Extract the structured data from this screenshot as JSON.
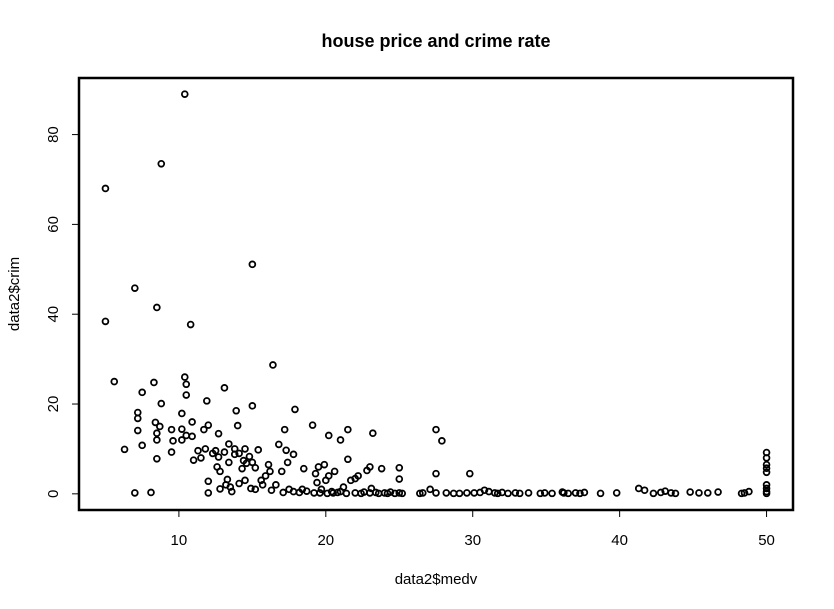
{
  "chart_data": {
    "type": "scatter",
    "title": "house price and crime rate",
    "xlabel": "data2$medv",
    "ylabel": "data2$crim",
    "xlim": [
      3.2,
      51.8
    ],
    "ylim": [
      -3.6,
      92.6
    ],
    "xticks": [
      10,
      20,
      30,
      40,
      50
    ],
    "yticks": [
      0,
      20,
      40,
      60,
      80
    ],
    "grid": false,
    "marker": "open-circle",
    "series": [
      {
        "points": [
          [
            5.0,
            68.0
          ],
          [
            5.0,
            38.4
          ],
          [
            5.6,
            25.0
          ],
          [
            6.3,
            9.9
          ],
          [
            7.0,
            45.8
          ],
          [
            7.0,
            0.2
          ],
          [
            7.2,
            18.1
          ],
          [
            7.2,
            16.8
          ],
          [
            7.2,
            14.1
          ],
          [
            7.5,
            22.6
          ],
          [
            7.5,
            10.8
          ],
          [
            8.1,
            0.3
          ],
          [
            8.3,
            24.8
          ],
          [
            8.4,
            15.9
          ],
          [
            8.5,
            41.5
          ],
          [
            8.5,
            13.5
          ],
          [
            8.5,
            12.0
          ],
          [
            8.5,
            7.8
          ],
          [
            8.7,
            15.0
          ],
          [
            8.8,
            73.5
          ],
          [
            8.8,
            20.1
          ],
          [
            9.5,
            14.3
          ],
          [
            9.5,
            9.3
          ],
          [
            9.6,
            11.8
          ],
          [
            10.2,
            17.9
          ],
          [
            10.2,
            14.4
          ],
          [
            10.2,
            12.0
          ],
          [
            10.4,
            89.0
          ],
          [
            10.4,
            26.0
          ],
          [
            10.5,
            24.4
          ],
          [
            10.5,
            13.0
          ],
          [
            10.5,
            22.0
          ],
          [
            10.8,
            37.7
          ],
          [
            10.9,
            16.0
          ],
          [
            10.9,
            12.8
          ],
          [
            11.0,
            7.5
          ],
          [
            11.3,
            9.6
          ],
          [
            11.5,
            8.0
          ],
          [
            11.7,
            14.3
          ],
          [
            11.8,
            10.0
          ],
          [
            11.9,
            20.7
          ],
          [
            12.0,
            15.3
          ],
          [
            12.0,
            2.8
          ],
          [
            12.0,
            0.2
          ],
          [
            12.3,
            9.0
          ],
          [
            12.5,
            9.6
          ],
          [
            12.6,
            6.0
          ],
          [
            12.7,
            13.4
          ],
          [
            12.7,
            8.2
          ],
          [
            12.8,
            5.0
          ],
          [
            12.8,
            1.1
          ],
          [
            13.1,
            23.6
          ],
          [
            13.1,
            9.3
          ],
          [
            13.2,
            2.0
          ],
          [
            13.3,
            3.2
          ],
          [
            13.4,
            11.1
          ],
          [
            13.4,
            7.0
          ],
          [
            13.5,
            1.5
          ],
          [
            13.6,
            0.5
          ],
          [
            13.8,
            8.8
          ],
          [
            13.8,
            10.0
          ],
          [
            13.9,
            18.5
          ],
          [
            14.0,
            15.2
          ],
          [
            14.1,
            9.0
          ],
          [
            14.1,
            2.3
          ],
          [
            14.3,
            5.6
          ],
          [
            14.4,
            7.4
          ],
          [
            14.5,
            10.0
          ],
          [
            14.5,
            3.0
          ],
          [
            14.6,
            6.8
          ],
          [
            14.8,
            8.3
          ],
          [
            14.9,
            1.2
          ],
          [
            15.0,
            51.1
          ],
          [
            15.0,
            19.6
          ],
          [
            15.0,
            7.0
          ],
          [
            15.2,
            5.8
          ],
          [
            15.2,
            1.0
          ],
          [
            15.4,
            9.8
          ],
          [
            15.6,
            3.0
          ],
          [
            15.7,
            2.0
          ],
          [
            15.9,
            4.0
          ],
          [
            16.1,
            6.5
          ],
          [
            16.2,
            5.0
          ],
          [
            16.3,
            0.8
          ],
          [
            16.4,
            28.7
          ],
          [
            16.6,
            2.0
          ],
          [
            16.8,
            11.0
          ],
          [
            17.0,
            5.0
          ],
          [
            17.1,
            0.3
          ],
          [
            17.2,
            14.3
          ],
          [
            17.3,
            9.7
          ],
          [
            17.4,
            7.0
          ],
          [
            17.5,
            1.0
          ],
          [
            17.8,
            0.5
          ],
          [
            17.8,
            8.8
          ],
          [
            17.9,
            18.8
          ],
          [
            18.2,
            0.3
          ],
          [
            18.4,
            1.0
          ],
          [
            18.5,
            5.6
          ],
          [
            18.7,
            0.6
          ],
          [
            19.1,
            15.3
          ],
          [
            19.2,
            0.2
          ],
          [
            19.3,
            4.5
          ],
          [
            19.4,
            2.5
          ],
          [
            19.5,
            6.0
          ],
          [
            19.6,
            0.2
          ],
          [
            19.7,
            1.0
          ],
          [
            19.9,
            6.5
          ],
          [
            20.0,
            3.0
          ],
          [
            20.1,
            0.1
          ],
          [
            20.2,
            13.0
          ],
          [
            20.2,
            4.0
          ],
          [
            20.4,
            0.5
          ],
          [
            20.5,
            0.2
          ],
          [
            20.6,
            5.0
          ],
          [
            20.8,
            0.3
          ],
          [
            21.0,
            12.0
          ],
          [
            21.0,
            0.5
          ],
          [
            21.2,
            1.5
          ],
          [
            21.4,
            0.1
          ],
          [
            21.5,
            14.3
          ],
          [
            21.5,
            7.7
          ],
          [
            21.7,
            3.0
          ],
          [
            22.0,
            0.2
          ],
          [
            22.0,
            3.4
          ],
          [
            22.2,
            4.0
          ],
          [
            22.4,
            0.1
          ],
          [
            22.6,
            0.4
          ],
          [
            22.8,
            5.2
          ],
          [
            23.0,
            0.2
          ],
          [
            23.0,
            6.0
          ],
          [
            23.1,
            1.2
          ],
          [
            23.2,
            13.5
          ],
          [
            23.4,
            0.3
          ],
          [
            23.6,
            0.1
          ],
          [
            23.8,
            5.6
          ],
          [
            24.0,
            0.2
          ],
          [
            24.2,
            0.1
          ],
          [
            24.4,
            0.4
          ],
          [
            24.7,
            0.1
          ],
          [
            25.0,
            5.8
          ],
          [
            25.0,
            0.2
          ],
          [
            25.0,
            3.3
          ],
          [
            25.2,
            0.1
          ],
          [
            26.4,
            0.1
          ],
          [
            26.6,
            0.2
          ],
          [
            27.1,
            1.0
          ],
          [
            27.5,
            0.2
          ],
          [
            27.5,
            14.3
          ],
          [
            27.5,
            4.5
          ],
          [
            27.9,
            11.8
          ],
          [
            28.2,
            0.2
          ],
          [
            28.7,
            0.1
          ],
          [
            29.1,
            0.1
          ],
          [
            29.6,
            0.2
          ],
          [
            29.8,
            4.5
          ],
          [
            30.1,
            0.2
          ],
          [
            30.5,
            0.3
          ],
          [
            30.8,
            0.8
          ],
          [
            31.1,
            0.5
          ],
          [
            31.5,
            0.2
          ],
          [
            31.7,
            0.1
          ],
          [
            32.0,
            0.3
          ],
          [
            32.4,
            0.1
          ],
          [
            32.9,
            0.2
          ],
          [
            33.2,
            0.1
          ],
          [
            33.8,
            0.2
          ],
          [
            34.6,
            0.1
          ],
          [
            34.9,
            0.2
          ],
          [
            35.4,
            0.1
          ],
          [
            36.1,
            0.4
          ],
          [
            36.2,
            0.2
          ],
          [
            36.5,
            0.1
          ],
          [
            37.0,
            0.2
          ],
          [
            37.3,
            0.1
          ],
          [
            37.6,
            0.3
          ],
          [
            38.7,
            0.1
          ],
          [
            39.8,
            0.2
          ],
          [
            41.3,
            1.2
          ],
          [
            41.7,
            0.8
          ],
          [
            42.3,
            0.1
          ],
          [
            42.8,
            0.3
          ],
          [
            43.1,
            0.6
          ],
          [
            43.5,
            0.2
          ],
          [
            43.8,
            0.1
          ],
          [
            44.8,
            0.4
          ],
          [
            45.4,
            0.2
          ],
          [
            46.0,
            0.2
          ],
          [
            46.7,
            0.4
          ],
          [
            48.3,
            0.1
          ],
          [
            48.5,
            0.2
          ],
          [
            48.8,
            0.5
          ],
          [
            50.0,
            9.2
          ],
          [
            50.0,
            8.0
          ],
          [
            50.0,
            6.5
          ],
          [
            50.0,
            5.7
          ],
          [
            50.0,
            4.8
          ],
          [
            50.0,
            2.0
          ],
          [
            50.0,
            1.2
          ],
          [
            50.0,
            0.5
          ],
          [
            50.0,
            0.1
          ]
        ]
      }
    ]
  }
}
